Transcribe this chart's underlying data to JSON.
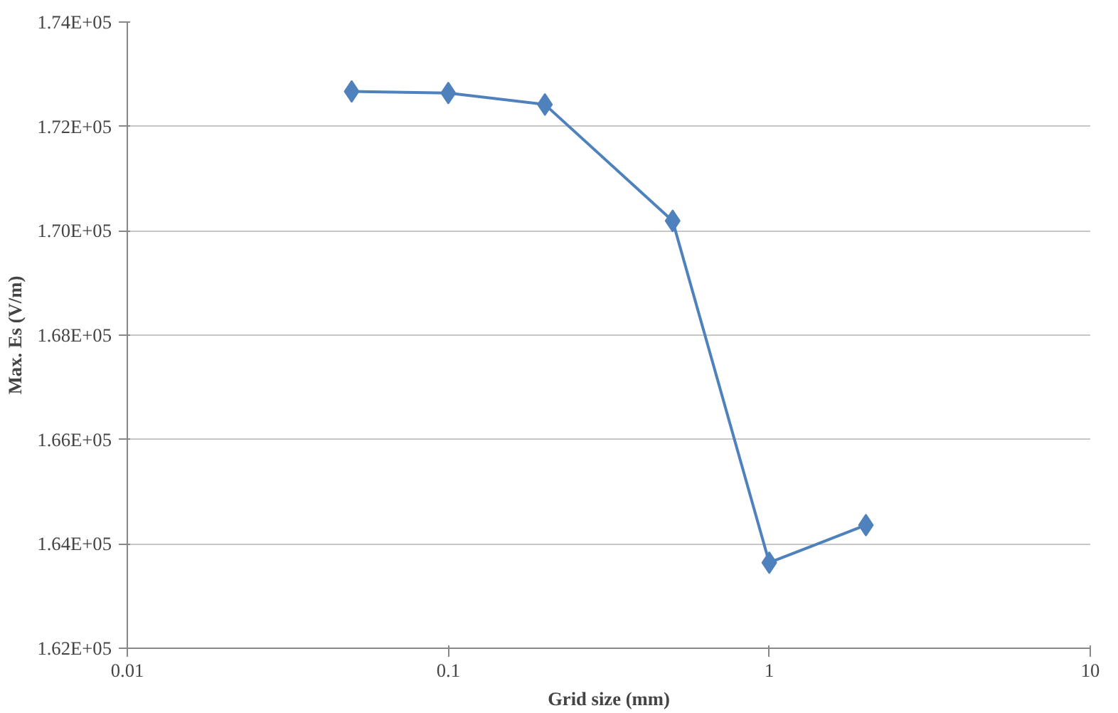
{
  "chart_data": {
    "type": "line",
    "xlabel": "Grid size (mm)",
    "ylabel": "Max. Es (V/m)",
    "x": [
      0.05,
      0.1,
      0.2,
      0.5,
      1,
      2
    ],
    "series": [
      {
        "color": "#4f81bd",
        "values": [
          172670,
          172640,
          172420,
          170190,
          163640,
          164360
        ]
      }
    ],
    "log": "x",
    "xlim": [
      0.01,
      10
    ],
    "xticks": [
      0.01,
      0.1,
      1,
      10
    ],
    "ylim": [
      162000,
      174000
    ],
    "yticks": [
      {
        "value": 162000,
        "label": "1.62E+05"
      },
      {
        "value": 164000,
        "label": "1.64E+05"
      },
      {
        "value": 166000,
        "label": "1.66E+05"
      },
      {
        "value": 168000,
        "label": "1.68E+05"
      },
      {
        "value": 170000,
        "label": "1.70E+05"
      },
      {
        "value": 172000,
        "label": "1.72E+05"
      },
      {
        "value": 174000,
        "label": "1.74E+05"
      }
    ],
    "grid": "y",
    "marker": "diamond",
    "line_style": "solid"
  }
}
